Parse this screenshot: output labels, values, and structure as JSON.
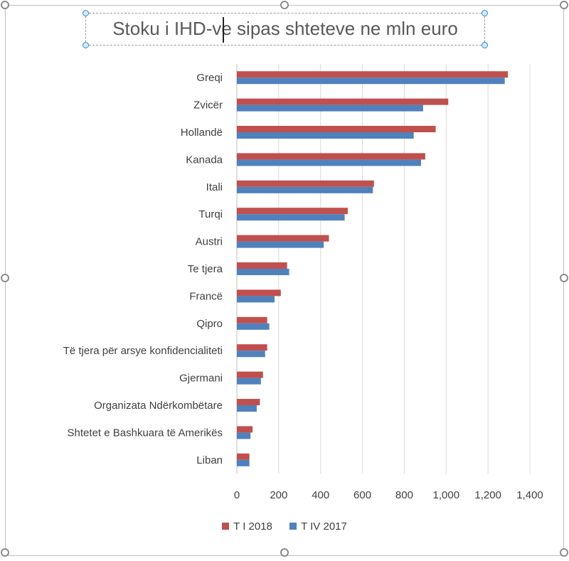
{
  "chart_data": {
    "type": "bar",
    "orientation": "horizontal",
    "title": "Stoku i IHD-ve sipas shteteve ne mln euro",
    "categories": [
      "Greqi",
      "Zvicër",
      "Hollandë",
      "Kanada",
      "Itali",
      "Turqi",
      "Austri",
      "Te tjera",
      "Francë",
      "Qipro",
      "Të tjera për arsye konfidencialiteti",
      "Gjermani",
      "Organizata Ndërkombëtare",
      "Shtetet e Bashkuara të Amerikës",
      "Liban"
    ],
    "series": [
      {
        "name": "T I 2018",
        "color": "#c0504d",
        "values": [
          1295,
          1010,
          950,
          900,
          655,
          530,
          440,
          240,
          210,
          145,
          145,
          125,
          110,
          75,
          60
        ]
      },
      {
        "name": "T IV 2017",
        "color": "#4f81bd",
        "values": [
          1280,
          890,
          845,
          880,
          650,
          515,
          415,
          250,
          180,
          155,
          135,
          115,
          95,
          65,
          60
        ]
      }
    ],
    "xlim": [
      0,
      1400
    ],
    "xticks": [
      "0",
      "200",
      "400",
      "600",
      "800",
      "1,000",
      "1,200",
      "1,400"
    ],
    "grid": true,
    "legend_position": "bottom"
  },
  "legend": {
    "item_1": "T I 2018",
    "item_2": "T IV 2017"
  }
}
